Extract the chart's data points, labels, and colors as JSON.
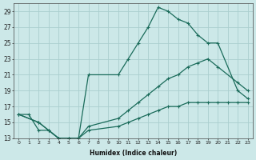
{
  "xlabel": "Humidex (Indice chaleur)",
  "xlim": [
    -0.5,
    23.5
  ],
  "ylim": [
    13,
    30
  ],
  "yticks": [
    13,
    15,
    17,
    19,
    21,
    23,
    25,
    27,
    29
  ],
  "xticks": [
    0,
    1,
    2,
    3,
    4,
    5,
    6,
    7,
    8,
    9,
    10,
    11,
    12,
    13,
    14,
    15,
    16,
    17,
    18,
    19,
    20,
    21,
    22,
    23
  ],
  "background_color": "#cce8e8",
  "grid_color": "#aacece",
  "line_color": "#1a6b5a",
  "line1_x": [
    0,
    1,
    2,
    3,
    4,
    5,
    6,
    7,
    10,
    11,
    12,
    13,
    14,
    15,
    16,
    17,
    18,
    19,
    20,
    22,
    23
  ],
  "line1_y": [
    16,
    16,
    14,
    14,
    13,
    13,
    13,
    21,
    21,
    23,
    25,
    27,
    29.5,
    29,
    28,
    27.5,
    26,
    25,
    25,
    19,
    18
  ],
  "line2_x": [
    0,
    2,
    3,
    4,
    5,
    6,
    7,
    10,
    11,
    12,
    13,
    14,
    15,
    16,
    17,
    18,
    19,
    20,
    22,
    23
  ],
  "line2_y": [
    16,
    15,
    14,
    13,
    13,
    13,
    14.5,
    15.5,
    16.5,
    17.5,
    18.5,
    19.5,
    20.5,
    21,
    22,
    22.5,
    23,
    22,
    20,
    19
  ],
  "line3_x": [
    0,
    2,
    3,
    4,
    5,
    6,
    7,
    10,
    11,
    12,
    13,
    14,
    15,
    16,
    17,
    18,
    19,
    20,
    21,
    22,
    23
  ],
  "line3_y": [
    16,
    15,
    14,
    13,
    13,
    13,
    14,
    14.5,
    15,
    15.5,
    16,
    16.5,
    17,
    17,
    17.5,
    17.5,
    17.5,
    17.5,
    17.5,
    17.5,
    17.5
  ]
}
